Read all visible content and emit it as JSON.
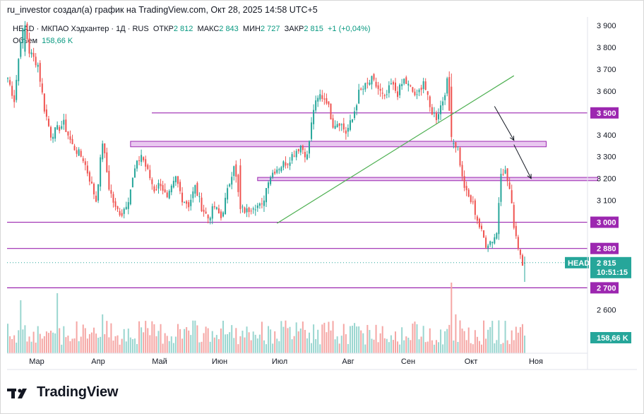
{
  "header": {
    "author_line": "ru_investor создал(а) график на TradingView.com, Окт 28, 2025 14:58 UTC+5"
  },
  "legend": {
    "symbol_line": "HEAD · МКПАО Хэдхантер · 1Д · RUS",
    "open_label": "ОТКР",
    "open": "2 812",
    "high_label": "МАКС",
    "high": "2 843",
    "low_label": "МИН",
    "low": "2 727",
    "close_label": "ЗАКР",
    "close": "2 815",
    "change": "+1 (+0,04%)",
    "volume_label": "Объем",
    "volume": "158,66 K"
  },
  "price_tag": {
    "symbol": "HEAD",
    "price": "2 815",
    "countdown": "10:51:15"
  },
  "volume_tag": "158,66 K",
  "brand": {
    "name": "TradingView"
  },
  "colors": {
    "up": "#26a69a",
    "down": "#ef5350",
    "level": "#9c27b0",
    "zone_fill": "#e9c8f0",
    "trendline": "#4caf50",
    "arrow": "#131722"
  },
  "chart_data": {
    "type": "candlestick",
    "y_ticks": [
      "3 900",
      "3 800",
      "3 700",
      "3 600",
      "3 400",
      "3 300",
      "3 200",
      "3 100",
      "2 600"
    ],
    "x_ticks": [
      "Мар",
      "Апр",
      "Май",
      "Июн",
      "Июл",
      "Авг",
      "Сен",
      "Окт",
      "Ноя"
    ],
    "ylim": [
      2520,
      3950
    ],
    "levels": [
      {
        "price": 3500,
        "label": "3 500"
      },
      {
        "price": 3000,
        "label": "3 000"
      },
      {
        "price": 2880,
        "label": "2 880"
      },
      {
        "price": 2700,
        "label": "2 700"
      }
    ],
    "zones": [
      {
        "from_day": 57,
        "to_day": 250,
        "low": 3345,
        "high": 3370
      },
      {
        "from_day": 116,
        "to_day": 274,
        "low": 3190,
        "high": 3205
      }
    ],
    "trendline": {
      "from": [
        125,
        2995
      ],
      "to": [
        235,
        3670
      ]
    },
    "arrows": [
      {
        "from": [
          226,
          3530
        ],
        "to": [
          235,
          3375
        ]
      },
      {
        "from": [
          235,
          3355
        ],
        "to": [
          243,
          3200
        ]
      }
    ],
    "waypoints": [
      [
        0,
        3660
      ],
      [
        3,
        3560
      ],
      [
        6,
        3840
      ],
      [
        8,
        3900
      ],
      [
        10,
        3780
      ],
      [
        14,
        3720
      ],
      [
        17,
        3520
      ],
      [
        20,
        3400
      ],
      [
        26,
        3450
      ],
      [
        30,
        3350
      ],
      [
        35,
        3290
      ],
      [
        38,
        3200
      ],
      [
        41,
        3100
      ],
      [
        44,
        3370
      ],
      [
        47,
        3160
      ],
      [
        50,
        3060
      ],
      [
        53,
        3040
      ],
      [
        56,
        3110
      ],
      [
        59,
        3240
      ],
      [
        62,
        3310
      ],
      [
        65,
        3230
      ],
      [
        68,
        3150
      ],
      [
        71,
        3180
      ],
      [
        74,
        3100
      ],
      [
        78,
        3200
      ],
      [
        81,
        3110
      ],
      [
        84,
        3080
      ],
      [
        87,
        3160
      ],
      [
        90,
        3070
      ],
      [
        93,
        3020
      ],
      [
        96,
        3070
      ],
      [
        99,
        3020
      ],
      [
        102,
        3140
      ],
      [
        105,
        3270
      ],
      [
        108,
        3060
      ],
      [
        111,
        3050
      ],
      [
        114,
        3080
      ],
      [
        118,
        3070
      ],
      [
        121,
        3200
      ],
      [
        124,
        3240
      ],
      [
        127,
        3260
      ],
      [
        130,
        3280
      ],
      [
        133,
        3320
      ],
      [
        136,
        3350
      ],
      [
        139,
        3300
      ],
      [
        142,
        3520
      ],
      [
        145,
        3580
      ],
      [
        148,
        3560
      ],
      [
        151,
        3450
      ],
      [
        154,
        3460
      ],
      [
        157,
        3410
      ],
      [
        160,
        3470
      ],
      [
        163,
        3590
      ],
      [
        166,
        3620
      ],
      [
        169,
        3650
      ],
      [
        172,
        3610
      ],
      [
        175,
        3560
      ],
      [
        178,
        3630
      ],
      [
        181,
        3590
      ],
      [
        184,
        3650
      ],
      [
        187,
        3610
      ],
      [
        190,
        3570
      ],
      [
        193,
        3650
      ],
      [
        196,
        3520
      ],
      [
        199,
        3480
      ],
      [
        202,
        3560
      ],
      [
        204,
        3640
      ],
      [
        206,
        3380
      ],
      [
        209,
        3340
      ],
      [
        211,
        3200
      ],
      [
        213,
        3130
      ],
      [
        216,
        3080
      ],
      [
        219,
        2980
      ],
      [
        222,
        2900
      ],
      [
        225,
        2920
      ],
      [
        227,
        2950
      ],
      [
        229,
        3240
      ],
      [
        231,
        3230
      ],
      [
        233,
        3150
      ],
      [
        235,
        2990
      ],
      [
        237,
        2890
      ],
      [
        239,
        2820
      ],
      [
        240,
        2815
      ]
    ],
    "special_candles": [
      {
        "day": 8,
        "open": 3780,
        "high": 3920,
        "low": 3760,
        "close": 3900
      },
      {
        "day": 108,
        "open": 3260,
        "high": 3290,
        "low": 3040,
        "close": 3060
      },
      {
        "day": 206,
        "open": 3620,
        "high": 3680,
        "low": 3370,
        "close": 3390
      },
      {
        "day": 240,
        "open": 2812,
        "high": 2843,
        "low": 2727,
        "close": 2815
      }
    ],
    "volume": {
      "spikes": [
        {
          "day": 6,
          "value": 0.75
        },
        {
          "day": 23,
          "value": 0.85
        },
        {
          "day": 44,
          "value": 0.55
        },
        {
          "day": 206,
          "value": 1.0
        },
        {
          "day": 208,
          "value": 0.55
        }
      ],
      "last": 0.25
    }
  }
}
